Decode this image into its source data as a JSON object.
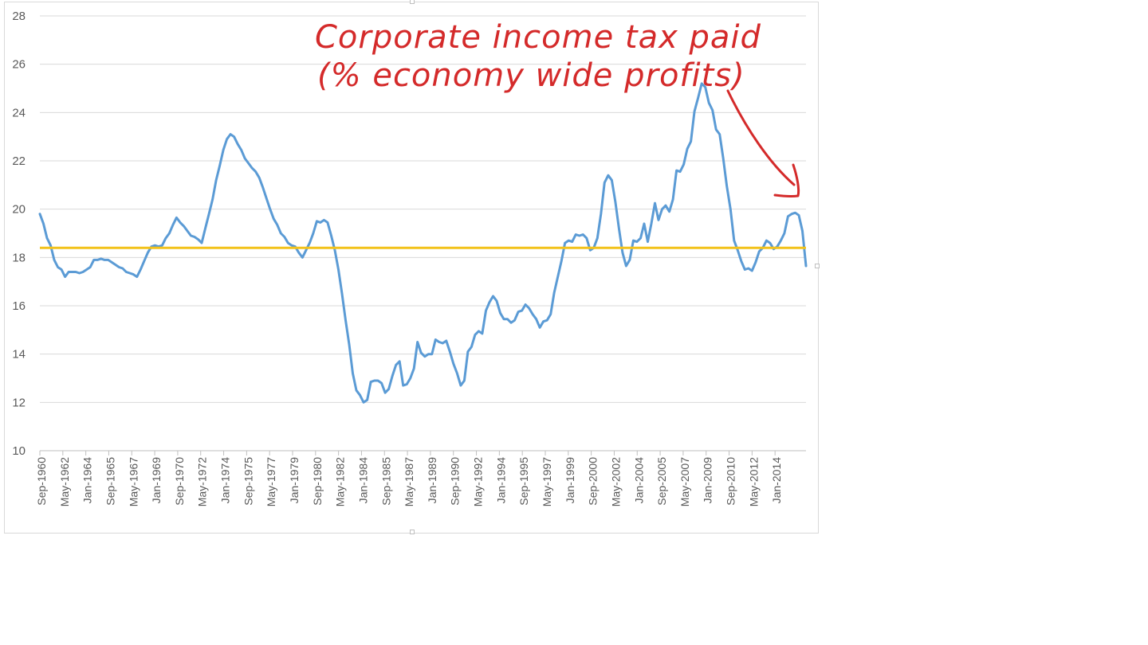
{
  "chart_data": {
    "type": "line",
    "title": "",
    "xlabel": "",
    "ylabel": "",
    "ylim": [
      10,
      28
    ],
    "yticks": [
      10,
      12,
      14,
      16,
      18,
      20,
      22,
      24,
      26,
      28
    ],
    "grid": "horizontal",
    "legend": "none",
    "x_tick_labels": [
      "Sep-1960",
      "May-1962",
      "Jan-1964",
      "Sep-1965",
      "May-1967",
      "Jan-1969",
      "Sep-1970",
      "May-1972",
      "Jan-1974",
      "Sep-1975",
      "May-1977",
      "Jan-1979",
      "Sep-1980",
      "May-1982",
      "Jan-1984",
      "Sep-1985",
      "May-1987",
      "Jan-1989",
      "Sep-1990",
      "May-1992",
      "Jan-1994",
      "Sep-1995",
      "May-1997",
      "Jan-1999",
      "Sep-2000",
      "May-2002",
      "Jan-2004",
      "Sep-2005",
      "May-2007",
      "Jan-2009",
      "Sep-2010",
      "May-2012",
      "Jan-2014"
    ],
    "series": [
      {
        "color": "#5b9bd5",
        "x_start": 1960.67,
        "x_step": 0.25,
        "values": [
          19.8,
          19.4,
          18.8,
          18.5,
          17.9,
          17.6,
          17.5,
          17.2,
          17.4,
          17.4,
          17.4,
          17.35,
          17.4,
          17.5,
          17.6,
          17.9,
          17.9,
          17.95,
          17.9,
          17.9,
          17.8,
          17.7,
          17.6,
          17.55,
          17.4,
          17.35,
          17.3,
          17.2,
          17.5,
          17.85,
          18.2,
          18.45,
          18.5,
          18.45,
          18.5,
          18.8,
          19.0,
          19.35,
          19.65,
          19.45,
          19.3,
          19.1,
          18.9,
          18.85,
          18.75,
          18.6,
          19.2,
          19.8,
          20.4,
          21.2,
          21.8,
          22.45,
          22.9,
          23.1,
          23.0,
          22.7,
          22.45,
          22.1,
          21.9,
          21.7,
          21.55,
          21.3,
          20.9,
          20.45,
          20.0,
          19.6,
          19.35,
          19.0,
          18.85,
          18.6,
          18.5,
          18.45,
          18.2,
          18.0,
          18.3,
          18.6,
          19.0,
          19.5,
          19.45,
          19.55,
          19.45,
          18.9,
          18.3,
          17.5,
          16.5,
          15.4,
          14.4,
          13.2,
          12.5,
          12.3,
          12.0,
          12.1,
          12.85,
          12.9,
          12.9,
          12.8,
          12.4,
          12.55,
          13.1,
          13.55,
          13.7,
          12.7,
          12.75,
          13.0,
          13.4,
          14.5,
          14.05,
          13.9,
          14.0,
          14.0,
          14.6,
          14.5,
          14.45,
          14.55,
          14.1,
          13.6,
          13.2,
          12.7,
          12.9,
          14.1,
          14.3,
          14.8,
          14.95,
          14.85,
          15.8,
          16.15,
          16.4,
          16.2,
          15.7,
          15.45,
          15.45,
          15.3,
          15.4,
          15.75,
          15.8,
          16.05,
          15.9,
          15.65,
          15.45,
          15.1,
          15.35,
          15.4,
          15.65,
          16.55,
          17.2,
          17.85,
          18.6,
          18.7,
          18.65,
          18.95,
          18.9,
          18.95,
          18.8,
          18.3,
          18.4,
          18.8,
          19.8,
          21.1,
          21.4,
          21.2,
          20.3,
          19.2,
          18.2,
          17.65,
          17.9,
          18.7,
          18.65,
          18.8,
          19.4,
          18.65,
          19.4,
          20.25,
          19.55,
          20.0,
          20.15,
          19.9,
          20.4,
          21.6,
          21.55,
          21.85,
          22.5,
          22.8,
          24.05,
          24.6,
          25.2,
          25.05,
          24.4,
          24.1,
          23.3,
          23.1,
          22.1,
          20.95,
          20.0,
          18.7,
          18.3,
          17.85,
          17.5,
          17.55,
          17.45,
          17.8,
          18.25,
          18.4,
          18.7,
          18.6,
          18.35,
          18.45,
          18.7,
          19.0,
          19.7,
          19.8,
          19.85,
          19.75,
          19.1,
          17.65
        ]
      },
      {
        "color": "#f2c21a",
        "constant": 18.4
      }
    ],
    "annotation": {
      "line1": "Corporate income tax paid",
      "line2": "(% economy wide profits)",
      "color": "#d42a2a"
    }
  }
}
